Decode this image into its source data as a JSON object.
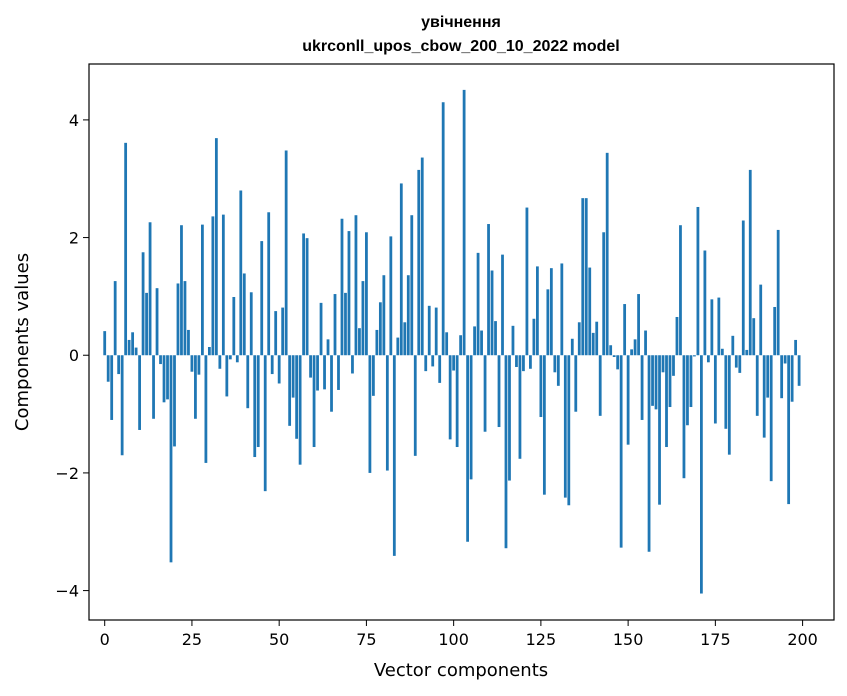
{
  "chart_data": {
    "type": "bar",
    "title_line1": "увічнення",
    "title_line2": "ukrconll_upos_cbow_200_10_2022 model",
    "xlabel": "Vector components",
    "ylabel": "Components values",
    "xlim": [
      -4.5,
      209
    ],
    "ylim": [
      -4.5,
      4.95
    ],
    "xticks": [
      0,
      25,
      50,
      75,
      100,
      125,
      150,
      175,
      200
    ],
    "yticks": [
      -4,
      -2,
      0,
      2,
      4
    ],
    "grid": false,
    "bar_color": "#1f77b4",
    "x": [
      0,
      1,
      2,
      3,
      4,
      5,
      6,
      7,
      8,
      9,
      10,
      11,
      12,
      13,
      14,
      15,
      16,
      17,
      18,
      19,
      20,
      21,
      22,
      23,
      24,
      25,
      26,
      27,
      28,
      29,
      30,
      31,
      32,
      33,
      34,
      35,
      36,
      37,
      38,
      39,
      40,
      41,
      42,
      43,
      44,
      45,
      46,
      47,
      48,
      49,
      50,
      51,
      52,
      53,
      54,
      55,
      56,
      57,
      58,
      59,
      60,
      61,
      62,
      63,
      64,
      65,
      66,
      67,
      68,
      69,
      70,
      71,
      72,
      73,
      74,
      75,
      76,
      77,
      78,
      79,
      80,
      81,
      82,
      83,
      84,
      85,
      86,
      87,
      88,
      89,
      90,
      91,
      92,
      93,
      94,
      95,
      96,
      97,
      98,
      99,
      100,
      101,
      102,
      103,
      104,
      105,
      106,
      107,
      108,
      109,
      110,
      111,
      112,
      113,
      114,
      115,
      116,
      117,
      118,
      119,
      120,
      121,
      122,
      123,
      124,
      125,
      126,
      127,
      128,
      129,
      130,
      131,
      132,
      133,
      134,
      135,
      136,
      137,
      138,
      139,
      140,
      141,
      142,
      143,
      144,
      145,
      146,
      147,
      148,
      149,
      150,
      151,
      152,
      153,
      154,
      155,
      156,
      157,
      158,
      159,
      160,
      161,
      162,
      163,
      164,
      165,
      166,
      167,
      168,
      169,
      170,
      171,
      172,
      173,
      174,
      175,
      176,
      177,
      178,
      179,
      180,
      181,
      182,
      183,
      184,
      185,
      186,
      187,
      188,
      189,
      190,
      191,
      192,
      193,
      194,
      195,
      196,
      197,
      198,
      199
    ],
    "values": [
      0.41,
      -0.45,
      -1.1,
      1.26,
      -0.32,
      -1.7,
      3.61,
      0.26,
      0.39,
      0.13,
      -1.27,
      1.75,
      1.06,
      2.26,
      -1.08,
      1.14,
      -0.15,
      -0.8,
      -0.75,
      -3.52,
      -1.55,
      1.22,
      2.21,
      1.26,
      0.43,
      -0.28,
      -1.08,
      -0.33,
      2.22,
      -1.83,
      0.14,
      2.36,
      3.69,
      -0.23,
      2.39,
      -0.7,
      -0.07,
      0.99,
      -0.12,
      2.8,
      1.39,
      -0.9,
      1.07,
      -1.73,
      -1.56,
      1.94,
      -2.31,
      2.43,
      -0.32,
      0.75,
      -0.48,
      0.81,
      3.48,
      -1.2,
      -0.72,
      -1.42,
      -1.86,
      2.07,
      1.99,
      -0.38,
      -1.56,
      -0.6,
      0.89,
      -0.58,
      0.27,
      -0.96,
      1.04,
      -0.59,
      2.32,
      1.06,
      2.11,
      -0.31,
      2.38,
      0.46,
      1.26,
      2.09,
      -2.0,
      -0.69,
      0.43,
      0.9,
      1.36,
      -1.96,
      2.02,
      -3.41,
      0.3,
      2.92,
      0.56,
      1.36,
      2.38,
      -1.71,
      3.15,
      3.36,
      -0.27,
      0.84,
      -0.19,
      0.81,
      -0.47,
      4.3,
      0.39,
      -1.43,
      -0.26,
      -1.56,
      0.34,
      4.51,
      -3.17,
      -2.11,
      0.49,
      1.74,
      0.42,
      -1.3,
      2.23,
      1.44,
      0.58,
      -1.22,
      1.71,
      -3.28,
      -2.13,
      0.5,
      -0.2,
      -1.76,
      -0.27,
      2.51,
      -0.23,
      0.62,
      1.51,
      -1.05,
      -2.37,
      1.12,
      1.48,
      -0.29,
      -0.52,
      1.56,
      -2.42,
      -2.55,
      0.28,
      -0.96,
      0.56,
      2.67,
      2.67,
      1.49,
      0.38,
      0.57,
      -1.03,
      2.09,
      3.44,
      0.17,
      -0.03,
      -0.24,
      -3.27,
      0.87,
      -1.52,
      0.1,
      0.27,
      1.04,
      -1.1,
      0.42,
      -3.34,
      -0.86,
      -0.92,
      -2.54,
      -0.29,
      -1.56,
      -0.88,
      -0.35,
      0.65,
      2.21,
      -2.09,
      -1.19,
      -0.88,
      -0.02,
      2.52,
      -4.05,
      1.78,
      -0.12,
      0.95,
      -1.16,
      0.98,
      0.11,
      -1.25,
      -1.69,
      0.33,
      -0.21,
      -0.3,
      2.29,
      0.09,
      3.15,
      0.63,
      -1.03,
      1.2,
      -1.4,
      -0.72,
      -2.14,
      0.82,
      2.13,
      -0.73,
      -0.14,
      -2.53,
      -0.79,
      0.26,
      -0.52
    ]
  }
}
